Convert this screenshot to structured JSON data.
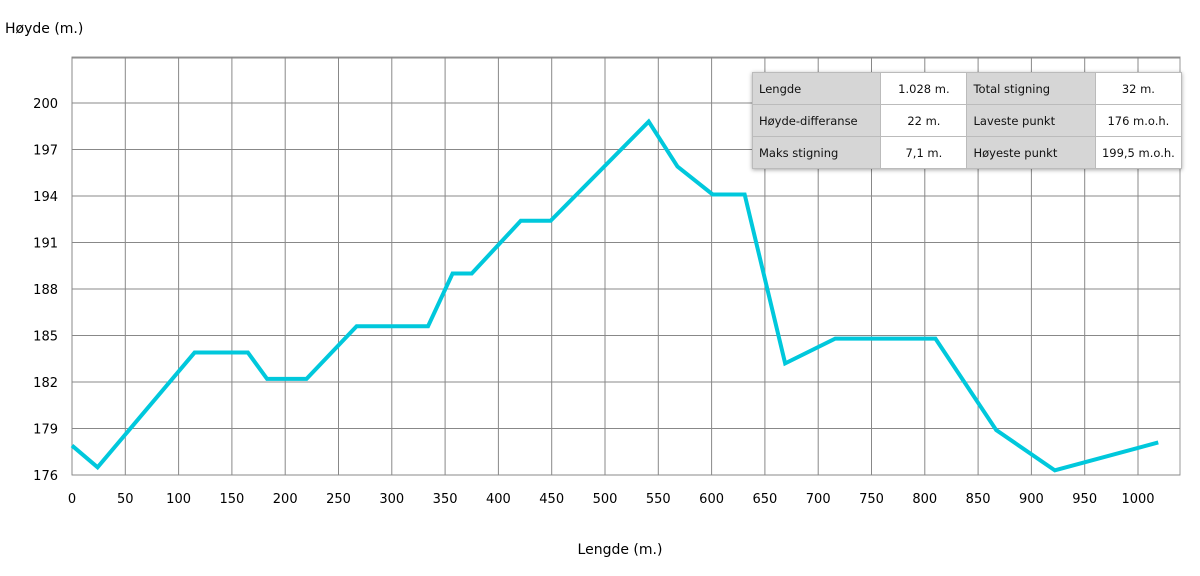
{
  "chart_data": {
    "type": "line",
    "ylabel": "Høyde (m.)",
    "xlabel": "Lengde (m.)",
    "xlim": [
      0,
      1040
    ],
    "ylim": [
      176,
      203
    ],
    "xticks": [
      0,
      50,
      100,
      150,
      200,
      250,
      300,
      350,
      400,
      450,
      500,
      550,
      600,
      650,
      700,
      750,
      800,
      850,
      900,
      950,
      1000
    ],
    "yticks": [
      176,
      179,
      182,
      185,
      188,
      191,
      194,
      197,
      200
    ],
    "grid": true,
    "line_color": "#00c8dc",
    "series": [
      {
        "name": "Høyde",
        "x": [
          0,
          24,
          115,
          165,
          183,
          220,
          267,
          334,
          357,
          375,
          421,
          449,
          541,
          568,
          601,
          631,
          669,
          716,
          810,
          867,
          922,
          1019
        ],
        "y": [
          177.9,
          176.5,
          183.9,
          183.9,
          182.2,
          182.2,
          185.6,
          185.6,
          189.0,
          189.0,
          192.4,
          192.4,
          198.8,
          195.9,
          194.1,
          194.1,
          183.2,
          184.8,
          184.8,
          178.9,
          176.3,
          178.1
        ]
      }
    ]
  },
  "stats": [
    [
      {
        "k": "Lengde",
        "v": "1.028 m."
      },
      {
        "k": "Total stigning",
        "v": "32 m."
      }
    ],
    [
      {
        "k": "Høyde-differanse",
        "v": "22 m."
      },
      {
        "k": "Laveste punkt",
        "v": "176 m.o.h."
      }
    ],
    [
      {
        "k": "Maks stigning",
        "v": "7,1 m."
      },
      {
        "k": "Høyeste punkt",
        "v": "199,5 m.o.h."
      }
    ]
  ]
}
